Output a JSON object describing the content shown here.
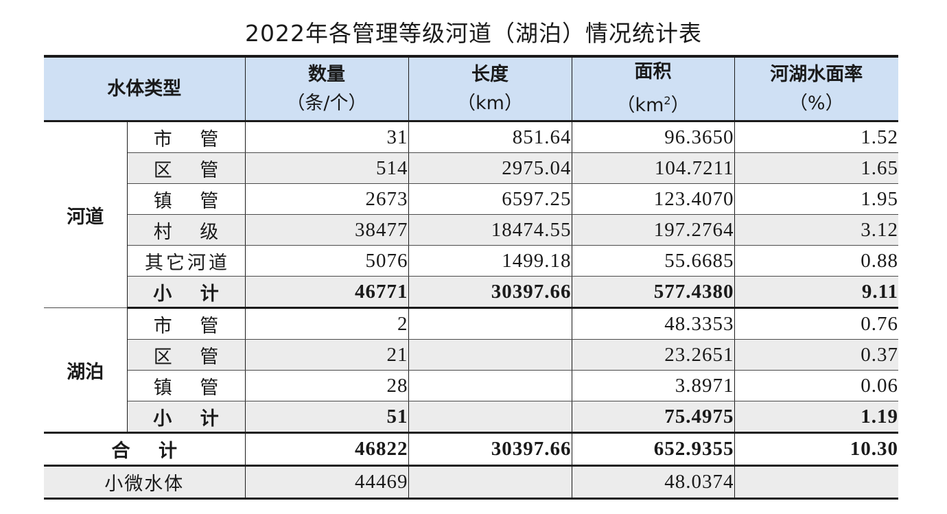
{
  "title": "2022年各管理等级河道（湖泊）情况统计表",
  "header": {
    "type": "水体类型",
    "count": {
      "label": "数量",
      "unit": "（条/个）"
    },
    "length": {
      "label": "长度",
      "unit": "（km）"
    },
    "area": {
      "label": "面积",
      "unit_pre": "（km",
      "unit_sup": "2",
      "unit_post": "）"
    },
    "rate": {
      "label": "河湖水面率",
      "unit": "（%）"
    }
  },
  "groups": {
    "river": {
      "name": "河道",
      "rows": [
        {
          "label": "市 管",
          "count": "31",
          "length": "851.64",
          "area": "96.3650",
          "rate": "1.52"
        },
        {
          "label": "区 管",
          "count": "514",
          "length": "2975.04",
          "area": "104.7211",
          "rate": "1.65"
        },
        {
          "label": "镇 管",
          "count": "2673",
          "length": "6597.25",
          "area": "123.4070",
          "rate": "1.95"
        },
        {
          "label": "村 级",
          "count": "38477",
          "length": "18474.55",
          "area": "197.2764",
          "rate": "3.12"
        },
        {
          "label": "其它河道",
          "count": "5076",
          "length": "1499.18",
          "area": "55.6685",
          "rate": "0.88"
        }
      ],
      "subtotal": {
        "label": "小 计",
        "count": "46771",
        "length": "30397.66",
        "area": "577.4380",
        "rate": "9.11"
      }
    },
    "lake": {
      "name": "湖泊",
      "rows": [
        {
          "label": "市 管",
          "count": "2",
          "length": "",
          "area": "48.3353",
          "rate": "0.76"
        },
        {
          "label": "区 管",
          "count": "21",
          "length": "",
          "area": "23.2651",
          "rate": "0.37"
        },
        {
          "label": "镇 管",
          "count": "28",
          "length": "",
          "area": "3.8971",
          "rate": "0.06"
        }
      ],
      "subtotal": {
        "label": "小 计",
        "count": "51",
        "length": "",
        "area": "75.4975",
        "rate": "1.19"
      }
    }
  },
  "total": {
    "label": "合 计",
    "count": "46822",
    "length": "30397.66",
    "area": "652.9355",
    "rate": "10.30"
  },
  "micro": {
    "label": "小微水体",
    "count": "44469",
    "length": "",
    "area": "48.0374",
    "rate": ""
  },
  "colors": {
    "header_bg": "#cfe0f4",
    "alt_row_bg": "#ececec",
    "rule": "#1a1a1a"
  }
}
